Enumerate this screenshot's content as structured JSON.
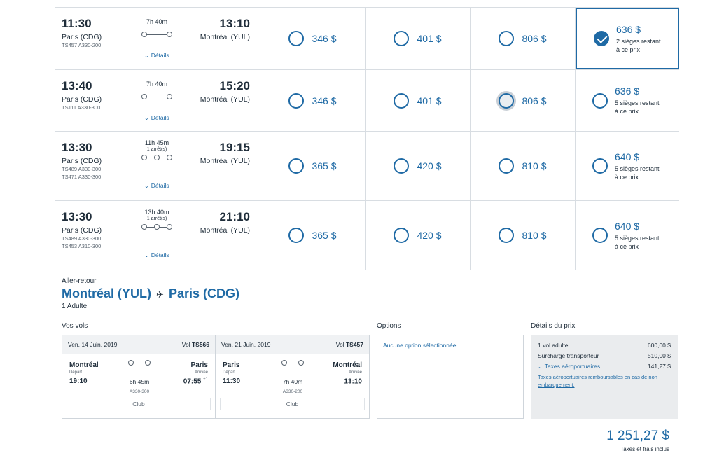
{
  "results": [
    {
      "dep_time": "11:30",
      "arr_time": "13:10",
      "dep_city": "Paris (CDG)",
      "arr_city": "Montréal (YUL)",
      "segments": [
        "TS457  A330-200"
      ],
      "duration": "7h 40m",
      "stops": "",
      "details": "Détails",
      "fares": [
        "346 $",
        "401 $",
        "806 $"
      ],
      "club": {
        "price": "636 $",
        "seats": "2 sièges restant",
        "seats2": "à ce prix"
      }
    },
    {
      "dep_time": "13:40",
      "arr_time": "15:20",
      "dep_city": "Paris (CDG)",
      "arr_city": "Montréal (YUL)",
      "segments": [
        "TS111  A330-300"
      ],
      "duration": "7h 40m",
      "stops": "",
      "details": "Détails",
      "fares": [
        "346 $",
        "401 $",
        "806 $"
      ],
      "club": {
        "price": "636 $",
        "seats": "5 sièges restant",
        "seats2": "à ce prix"
      }
    },
    {
      "dep_time": "13:30",
      "arr_time": "19:15",
      "dep_city": "Paris (CDG)",
      "arr_city": "Montréal (YUL)",
      "segments": [
        "TS489  A330-300",
        "TS471  A330-300"
      ],
      "duration": "11h 45m",
      "stops": "1 arrêt(s)",
      "details": "Détails",
      "fares": [
        "365 $",
        "420 $",
        "810 $"
      ],
      "club": {
        "price": "640 $",
        "seats": "5 sièges restant",
        "seats2": "à ce prix"
      }
    },
    {
      "dep_time": "13:30",
      "arr_time": "21:10",
      "dep_city": "Paris (CDG)",
      "arr_city": "Montréal (YUL)",
      "segments": [
        "TS489  A330-300",
        "TS453  A310-300"
      ],
      "duration": "13h 40m",
      "stops": "1 arrêt(s)",
      "details": "Détails",
      "fares": [
        "365 $",
        "420 $",
        "810 $"
      ],
      "club": {
        "price": "640 $",
        "seats": "5 sièges restant",
        "seats2": "à ce prix"
      }
    }
  ],
  "summary": {
    "trip_type": "Aller-retour",
    "origin": "Montréal (YUL)",
    "destination": "Paris (CDG)",
    "passengers": "1 Adulte",
    "flights_title": "Vos vols",
    "options_title": "Options",
    "price_title": "Détails du prix",
    "flights": [
      {
        "date": "Ven, 14 Juin, 2019",
        "flight_label": "Vol",
        "flight_no": "TS566",
        "from": "Montréal",
        "to": "Paris",
        "from_sub": "Départ",
        "to_sub": "Arrivée",
        "dep": "19:10",
        "arr": "07:55",
        "arr_sup": "+1",
        "duration": "6h 45m",
        "aircraft": "A330-300",
        "cabin": "Club"
      },
      {
        "date": "Ven, 21 Juin, 2019",
        "flight_label": "Vol",
        "flight_no": "TS457",
        "from": "Paris",
        "to": "Montréal",
        "from_sub": "Départ",
        "to_sub": "Arrivée",
        "dep": "11:30",
        "arr": "13:10",
        "arr_sup": "",
        "duration": "7h 40m",
        "aircraft": "A330-200",
        "cabin": "Club"
      }
    ],
    "options_text": "Aucune option sélectionnée",
    "price_lines": [
      {
        "label": "1 vol adulte",
        "amount": "600,00 $"
      },
      {
        "label": "Surcharge transporteur",
        "amount": "510,00 $"
      },
      {
        "label": "Taxes aéroportuaires",
        "amount": "141,27 $"
      }
    ],
    "price_note": "Taxes aéroportuaires remboursables en cas de non embarquement.",
    "total": "1 251,27 $",
    "total_note": "Taxes et frais inclus"
  }
}
